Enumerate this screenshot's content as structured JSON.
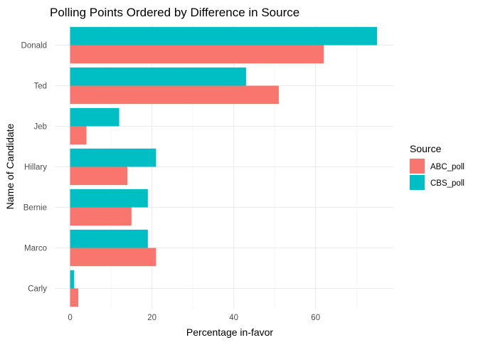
{
  "chart_data": {
    "type": "bar",
    "orientation": "horizontal",
    "title": "Polling Points Ordered by Difference in Source",
    "xlabel": "Percentage in-favor",
    "ylabel": "Name of Candidate",
    "categories": [
      "Donald",
      "Ted",
      "Jeb",
      "Hillary",
      "Bernie",
      "Marco",
      "Carly"
    ],
    "series": [
      {
        "name": "ABC_poll",
        "color": "#F8766D",
        "values": [
          62,
          51,
          4,
          14,
          15,
          21,
          2
        ]
      },
      {
        "name": "CBS_poll",
        "color": "#00BFC4",
        "values": [
          75,
          43,
          12,
          21,
          19,
          19,
          1
        ]
      }
    ],
    "xlim": [
      -3.75,
      79
    ],
    "x_ticks": [
      0,
      20,
      40,
      60
    ],
    "grid": true,
    "legend": {
      "title": "Source",
      "placement": "right",
      "entries": [
        "ABC_poll",
        "CBS_poll"
      ]
    }
  }
}
